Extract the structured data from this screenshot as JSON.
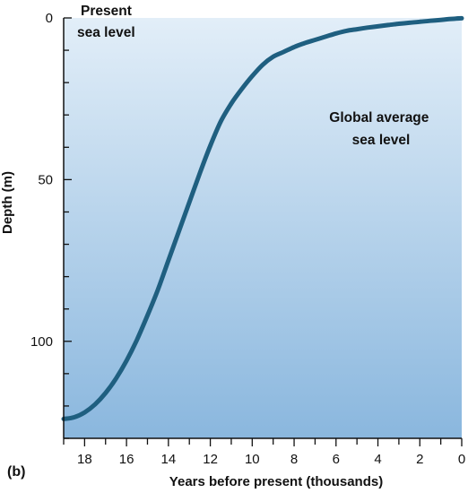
{
  "chart_data": {
    "type": "line",
    "title": "",
    "xlabel": "Years before present (thousands)",
    "ylabel": "Depth (m)",
    "xlim": [
      19,
      0
    ],
    "ylim": [
      0,
      130
    ],
    "x_reversed": true,
    "y_reversed": true,
    "x_ticks": [
      18,
      16,
      14,
      12,
      10,
      8,
      6,
      4,
      2,
      0
    ],
    "x_minor_step": 1,
    "y_ticks": [
      0,
      50,
      100
    ],
    "y_minor_step": 10,
    "grid": false,
    "panel_label": "(b)",
    "annotations": [
      {
        "lines": [
          "Present",
          "sea level"
        ]
      },
      {
        "lines": [
          "Global average",
          "sea level"
        ]
      }
    ],
    "colors": {
      "line": "#1f5f80",
      "background_top": "#e2eef8",
      "background_bottom": "#8ab7de",
      "axis": "#111111"
    },
    "series": [
      {
        "x": [
          19.0,
          18.5,
          18.0,
          17.5,
          17.0,
          16.5,
          16.0,
          15.5,
          15.0,
          14.5,
          14.0,
          13.5,
          13.0,
          12.5,
          12.0,
          11.5,
          11.0,
          10.5,
          10.0,
          9.5,
          9.0,
          8.5,
          8.0,
          7.5,
          7.0,
          6.5,
          6.0,
          5.5,
          5.0,
          4.5,
          4.0,
          3.5,
          3.0,
          2.5,
          2.0,
          1.5,
          1.0,
          0.5,
          0.0
        ],
        "values": [
          124,
          123.5,
          122,
          119.5,
          116,
          111.5,
          106,
          99.5,
          92,
          84,
          75,
          66,
          57,
          48,
          39.5,
          32,
          26.5,
          22,
          18,
          14.5,
          12,
          10.5,
          9,
          7.8,
          6.8,
          5.8,
          4.8,
          4,
          3.5,
          3,
          2.6,
          2.2,
          1.8,
          1.5,
          1.2,
          0.9,
          0.6,
          0.3,
          0.1
        ]
      }
    ]
  }
}
